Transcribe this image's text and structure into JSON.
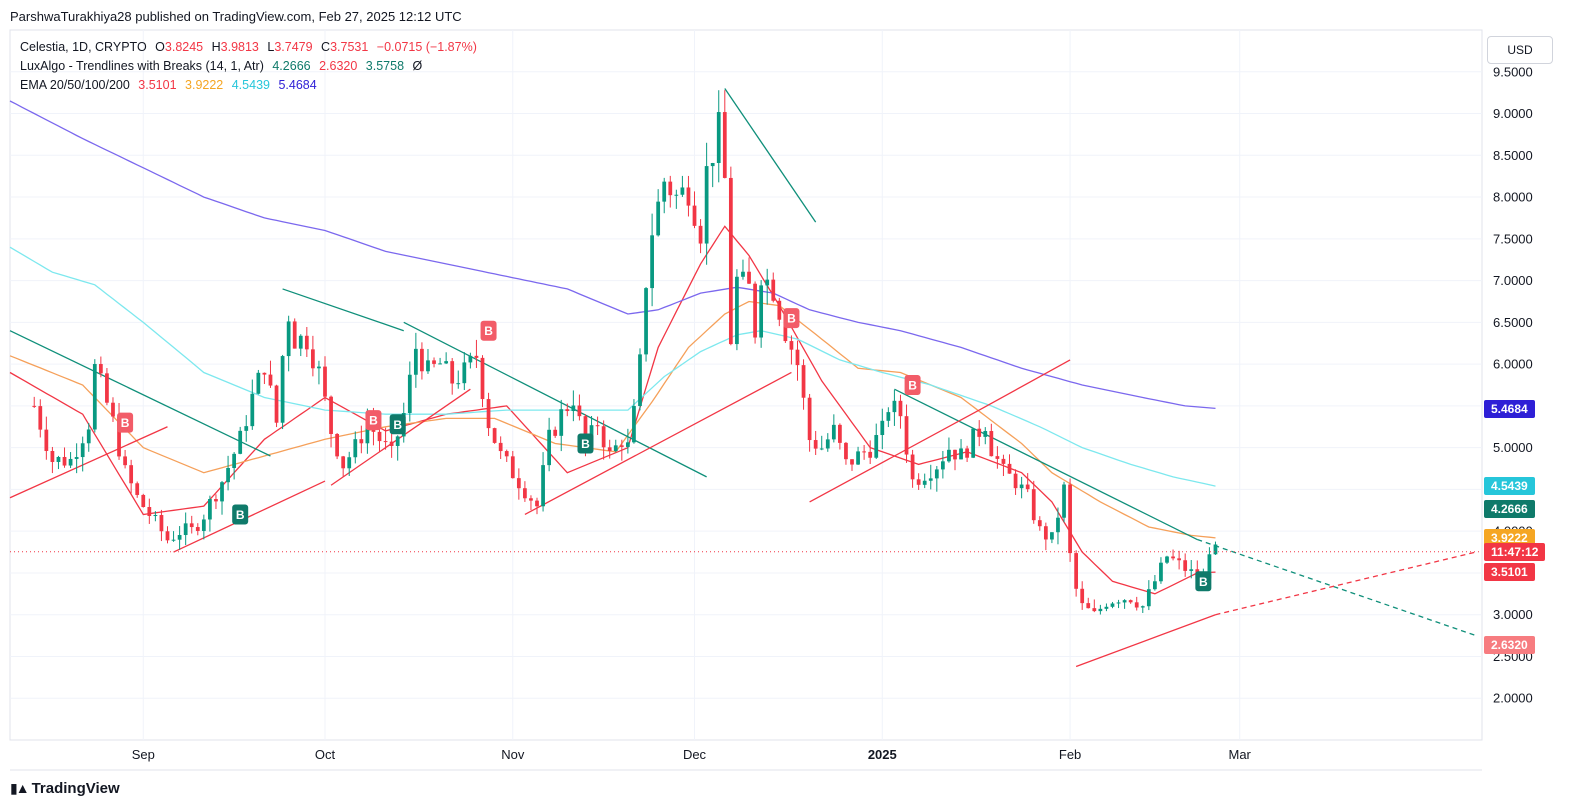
{
  "publisher_line": "ParshwaTurakhiya28 published on TradingView.com, Feb 27, 2025 12:12 UTC",
  "legend": {
    "symbol": "Celestia, 1D, CRYPTO",
    "o_label": "O",
    "o": "3.8245",
    "h_label": "H",
    "h": "3.9813",
    "l_label": "L",
    "l": "3.7479",
    "c_label": "C",
    "c": "3.7531",
    "change": "−0.0715 (−1.87%)",
    "indicator1_name": "LuxAlgo - Trendlines with Breaks (14, 1, Atr)",
    "indicator1_values": [
      "4.2666",
      "2.6320",
      "3.5758"
    ],
    "indicator1_suffix": "Ø",
    "indicator2_name": "EMA 20/50/100/200",
    "indicator2_values": [
      "3.5101",
      "3.9222",
      "4.5439",
      "5.4684"
    ]
  },
  "currency_button": "USD",
  "brand": "TradingView",
  "price_tags": [
    {
      "label": "5.4684",
      "value": 5.4684,
      "color": "#2e1fd6"
    },
    {
      "label": "4.5439",
      "value": 4.5439,
      "color": "#26c6da"
    },
    {
      "label": "4.2666",
      "value": 4.2666,
      "color": "#0f7a6a"
    },
    {
      "label": "3.9222",
      "value": 3.9222,
      "color": "#f5a623"
    },
    {
      "label": "11:47:12",
      "value": 3.75,
      "color": "#f23645"
    },
    {
      "label": "3.5101",
      "value": 3.5101,
      "color": "#f23645"
    },
    {
      "label": "2.6320",
      "value": 2.632,
      "color": "#f77c80"
    }
  ],
  "colors": {
    "up": "#089981",
    "down": "#f23645",
    "ema20": "#f23645",
    "ema50": "#f5a05a",
    "ema100": "#7de8ee",
    "ema200": "#7b68ee",
    "trend_down": "#0f8f7a",
    "trend_up": "#f23645",
    "grid": "#f0f3fa"
  },
  "chart_data": {
    "type": "candlestick",
    "symbol": "Celestia, 1D, CRYPTO",
    "ylim": [
      1.5,
      10.0
    ],
    "y_ticks": [
      "2.0000",
      "2.5000",
      "3.0000",
      "3.5000",
      "4.0000",
      "4.5000",
      "5.0000",
      "5.5000",
      "6.0000",
      "6.5000",
      "7.0000",
      "7.5000",
      "8.0000",
      "8.5000",
      "9.0000",
      "9.5000"
    ],
    "x_range_days": [
      -22,
      221
    ],
    "x_ticks": [
      {
        "label": "Sep",
        "day": 0,
        "bold": false
      },
      {
        "label": "Oct",
        "day": 30,
        "bold": false
      },
      {
        "label": "Nov",
        "day": 61,
        "bold": false
      },
      {
        "label": "Dec",
        "day": 91,
        "bold": false
      },
      {
        "label": "2025",
        "day": 122,
        "bold": true
      },
      {
        "label": "Feb",
        "day": 153,
        "bold": false
      },
      {
        "label": "Mar",
        "day": 181,
        "bold": false
      }
    ],
    "close_path": [
      [
        -18,
        5.5
      ],
      [
        -15,
        4.85
      ],
      [
        -12,
        4.85
      ],
      [
        -9,
        5.3
      ],
      [
        -8,
        5.95
      ],
      [
        -7,
        5.75
      ],
      [
        -5,
        5.3
      ],
      [
        -3,
        4.7
      ],
      [
        -1,
        4.4
      ],
      [
        2,
        4.1
      ],
      [
        4,
        3.9
      ],
      [
        6,
        4.0
      ],
      [
        8,
        4.0
      ],
      [
        10,
        4.2
      ],
      [
        13,
        4.6
      ],
      [
        16,
        5.1
      ],
      [
        18,
        5.6
      ],
      [
        20,
        6.0
      ],
      [
        22,
        5.3
      ],
      [
        23,
        6.1
      ],
      [
        24,
        6.6
      ],
      [
        25,
        6.3
      ],
      [
        27,
        6.3
      ],
      [
        29,
        5.9
      ],
      [
        31,
        5.2
      ],
      [
        33,
        4.8
      ],
      [
        35,
        5.0
      ],
      [
        37,
        5.3
      ],
      [
        39,
        5.1
      ],
      [
        41,
        4.9
      ],
      [
        43,
        5.4
      ],
      [
        45,
        6.2
      ],
      [
        47,
        5.9
      ],
      [
        49,
        6.0
      ],
      [
        51,
        5.8
      ],
      [
        53,
        5.9
      ],
      [
        55,
        6.1
      ],
      [
        57,
        5.3
      ],
      [
        59,
        4.9
      ],
      [
        61,
        4.7
      ],
      [
        63,
        4.5
      ],
      [
        65,
        4.3
      ],
      [
        67,
        5.1
      ],
      [
        69,
        5.4
      ],
      [
        71,
        5.6
      ],
      [
        73,
        5.0
      ],
      [
        75,
        5.3
      ],
      [
        77,
        4.9
      ],
      [
        79,
        5.1
      ],
      [
        80,
        5.0
      ],
      [
        81,
        5.4
      ],
      [
        82,
        6.0
      ],
      [
        83,
        7.0
      ],
      [
        84,
        7.6
      ],
      [
        85,
        7.9
      ],
      [
        86,
        8.2
      ],
      [
        88,
        8.0
      ],
      [
        90,
        8.1
      ],
      [
        92,
        7.6
      ],
      [
        93,
        8.3
      ],
      [
        95,
        8.8
      ],
      [
        96,
        8.2
      ],
      [
        97,
        6.3
      ],
      [
        98,
        7.0
      ],
      [
        100,
        6.9
      ],
      [
        101,
        6.4
      ],
      [
        102,
        7.1
      ],
      [
        104,
        6.9
      ],
      [
        106,
        6.4
      ],
      [
        108,
        6.0
      ],
      [
        110,
        5.1
      ],
      [
        112,
        5.0
      ],
      [
        114,
        5.2
      ],
      [
        116,
        4.8
      ],
      [
        118,
        4.9
      ],
      [
        120,
        5.0
      ],
      [
        122,
        5.2
      ],
      [
        123,
        5.5
      ],
      [
        125,
        5.4
      ],
      [
        126,
        5.0
      ],
      [
        127,
        4.6
      ],
      [
        129,
        4.7
      ],
      [
        131,
        4.8
      ],
      [
        133,
        5.0
      ],
      [
        135,
        4.9
      ],
      [
        137,
        5.1
      ],
      [
        139,
        5.3
      ],
      [
        140,
        5.0
      ],
      [
        142,
        4.7
      ],
      [
        144,
        4.6
      ],
      [
        146,
        4.4
      ],
      [
        148,
        4.0
      ],
      [
        150,
        3.9
      ],
      [
        151,
        4.2
      ],
      [
        152,
        4.5
      ],
      [
        153,
        3.7
      ],
      [
        154,
        3.3
      ],
      [
        155,
        3.1
      ],
      [
        157,
        3.0
      ],
      [
        159,
        3.15
      ],
      [
        161,
        3.2
      ],
      [
        163,
        3.2
      ],
      [
        165,
        3.1
      ],
      [
        167,
        3.4
      ],
      [
        169,
        3.7
      ],
      [
        171,
        3.6
      ],
      [
        173,
        3.5
      ],
      [
        175,
        3.4
      ],
      [
        176,
        3.8
      ],
      [
        177,
        3.75
      ]
    ],
    "ema_series": [
      {
        "name": "EMA 20",
        "points": [
          [
            -22,
            5.9
          ],
          [
            -10,
            5.4
          ],
          [
            0,
            4.2
          ],
          [
            10,
            4.3
          ],
          [
            20,
            5.1
          ],
          [
            30,
            5.6
          ],
          [
            40,
            5.2
          ],
          [
            50,
            5.4
          ],
          [
            60,
            5.5
          ],
          [
            70,
            4.7
          ],
          [
            80,
            5.0
          ],
          [
            85,
            6.2
          ],
          [
            92,
            7.2
          ],
          [
            96,
            7.65
          ],
          [
            100,
            7.3
          ],
          [
            105,
            6.7
          ],
          [
            112,
            5.8
          ],
          [
            120,
            5.0
          ],
          [
            128,
            4.8
          ],
          [
            136,
            4.95
          ],
          [
            145,
            4.7
          ],
          [
            150,
            4.35
          ],
          [
            155,
            3.75
          ],
          [
            160,
            3.4
          ],
          [
            167,
            3.25
          ],
          [
            174,
            3.5
          ],
          [
            177,
            3.51
          ]
        ]
      },
      {
        "name": "EMA 50",
        "points": [
          [
            -22,
            6.1
          ],
          [
            -10,
            5.75
          ],
          [
            0,
            5.0
          ],
          [
            10,
            4.7
          ],
          [
            20,
            4.9
          ],
          [
            30,
            5.1
          ],
          [
            40,
            5.25
          ],
          [
            50,
            5.35
          ],
          [
            58,
            5.35
          ],
          [
            68,
            5.05
          ],
          [
            78,
            4.95
          ],
          [
            84,
            5.55
          ],
          [
            90,
            6.2
          ],
          [
            96,
            6.6
          ],
          [
            100,
            6.75
          ],
          [
            105,
            6.7
          ],
          [
            112,
            6.3
          ],
          [
            118,
            5.95
          ],
          [
            125,
            5.9
          ],
          [
            135,
            5.6
          ],
          [
            145,
            5.05
          ],
          [
            150,
            4.7
          ],
          [
            158,
            4.35
          ],
          [
            166,
            4.05
          ],
          [
            173,
            3.95
          ],
          [
            177,
            3.92
          ]
        ]
      },
      {
        "name": "EMA 100",
        "points": [
          [
            -22,
            7.4
          ],
          [
            -15,
            7.1
          ],
          [
            -8,
            6.95
          ],
          [
            0,
            6.5
          ],
          [
            10,
            5.9
          ],
          [
            20,
            5.6
          ],
          [
            30,
            5.45
          ],
          [
            40,
            5.4
          ],
          [
            50,
            5.4
          ],
          [
            60,
            5.45
          ],
          [
            70,
            5.45
          ],
          [
            80,
            5.45
          ],
          [
            86,
            5.85
          ],
          [
            92,
            6.15
          ],
          [
            98,
            6.35
          ],
          [
            102,
            6.4
          ],
          [
            108,
            6.3
          ],
          [
            115,
            6.05
          ],
          [
            122,
            5.9
          ],
          [
            130,
            5.75
          ],
          [
            140,
            5.5
          ],
          [
            148,
            5.25
          ],
          [
            155,
            5.0
          ],
          [
            163,
            4.8
          ],
          [
            170,
            4.65
          ],
          [
            177,
            4.54
          ]
        ]
      },
      {
        "name": "EMA 200",
        "points": [
          [
            -22,
            9.15
          ],
          [
            -10,
            8.7
          ],
          [
            0,
            8.35
          ],
          [
            10,
            8.0
          ],
          [
            20,
            7.75
          ],
          [
            30,
            7.6
          ],
          [
            40,
            7.35
          ],
          [
            50,
            7.2
          ],
          [
            60,
            7.05
          ],
          [
            70,
            6.9
          ],
          [
            80,
            6.6
          ],
          [
            85,
            6.65
          ],
          [
            92,
            6.85
          ],
          [
            98,
            6.92
          ],
          [
            104,
            6.85
          ],
          [
            110,
            6.65
          ],
          [
            118,
            6.5
          ],
          [
            125,
            6.4
          ],
          [
            135,
            6.2
          ],
          [
            145,
            5.95
          ],
          [
            155,
            5.75
          ],
          [
            165,
            5.6
          ],
          [
            172,
            5.5
          ],
          [
            177,
            5.47
          ]
        ]
      }
    ],
    "trendlines": [
      {
        "kind": "down",
        "from": [
          -22,
          6.4
        ],
        "to": [
          21,
          4.9
        ]
      },
      {
        "kind": "down",
        "from": [
          23,
          6.9
        ],
        "to": [
          43,
          6.4
        ]
      },
      {
        "kind": "down",
        "from": [
          43,
          6.5
        ],
        "to": [
          93,
          4.65
        ]
      },
      {
        "kind": "down",
        "from": [
          96,
          9.3
        ],
        "to": [
          111,
          7.7
        ]
      },
      {
        "kind": "down",
        "from": [
          124,
          5.7
        ],
        "to": [
          174,
          3.9
        ]
      },
      {
        "kind": "down_ext",
        "from": [
          174,
          3.9
        ],
        "to": [
          220,
          2.75
        ]
      },
      {
        "kind": "up",
        "from": [
          -22,
          4.4
        ],
        "to": [
          4,
          5.25
        ]
      },
      {
        "kind": "up",
        "from": [
          5,
          3.75
        ],
        "to": [
          30,
          4.6
        ]
      },
      {
        "kind": "up",
        "from": [
          31,
          4.55
        ],
        "to": [
          54,
          5.7
        ]
      },
      {
        "kind": "up",
        "from": [
          63,
          4.2
        ],
        "to": [
          107,
          5.9
        ]
      },
      {
        "kind": "up",
        "from": [
          110,
          4.35
        ],
        "to": [
          138,
          5.45
        ]
      },
      {
        "kind": "up",
        "from": [
          138,
          5.45
        ],
        "to": [
          153,
          6.05
        ]
      },
      {
        "kind": "up",
        "from": [
          154,
          2.38
        ],
        "to": [
          177,
          3.0
        ]
      },
      {
        "kind": "up_ext",
        "from": [
          177,
          3.0
        ],
        "to": [
          220,
          3.75
        ]
      }
    ],
    "break_labels": [
      {
        "text": "B",
        "type": "sell",
        "day": -3,
        "value": 5.3
      },
      {
        "text": "B",
        "type": "buy",
        "day": 16,
        "value": 4.2
      },
      {
        "text": "B",
        "type": "sell",
        "day": 38,
        "value": 5.33
      },
      {
        "text": "B",
        "type": "buy",
        "day": 42,
        "value": 5.28
      },
      {
        "text": "B",
        "type": "sell",
        "day": 57,
        "value": 6.4
      },
      {
        "text": "B",
        "type": "buy",
        "day": 73,
        "value": 5.05
      },
      {
        "text": "B",
        "type": "sell",
        "day": 107,
        "value": 6.55
      },
      {
        "text": "B",
        "type": "sell",
        "day": 127,
        "value": 5.75
      },
      {
        "text": "B",
        "type": "buy",
        "day": 175,
        "value": 3.4
      }
    ],
    "current_price": 3.7531
  }
}
